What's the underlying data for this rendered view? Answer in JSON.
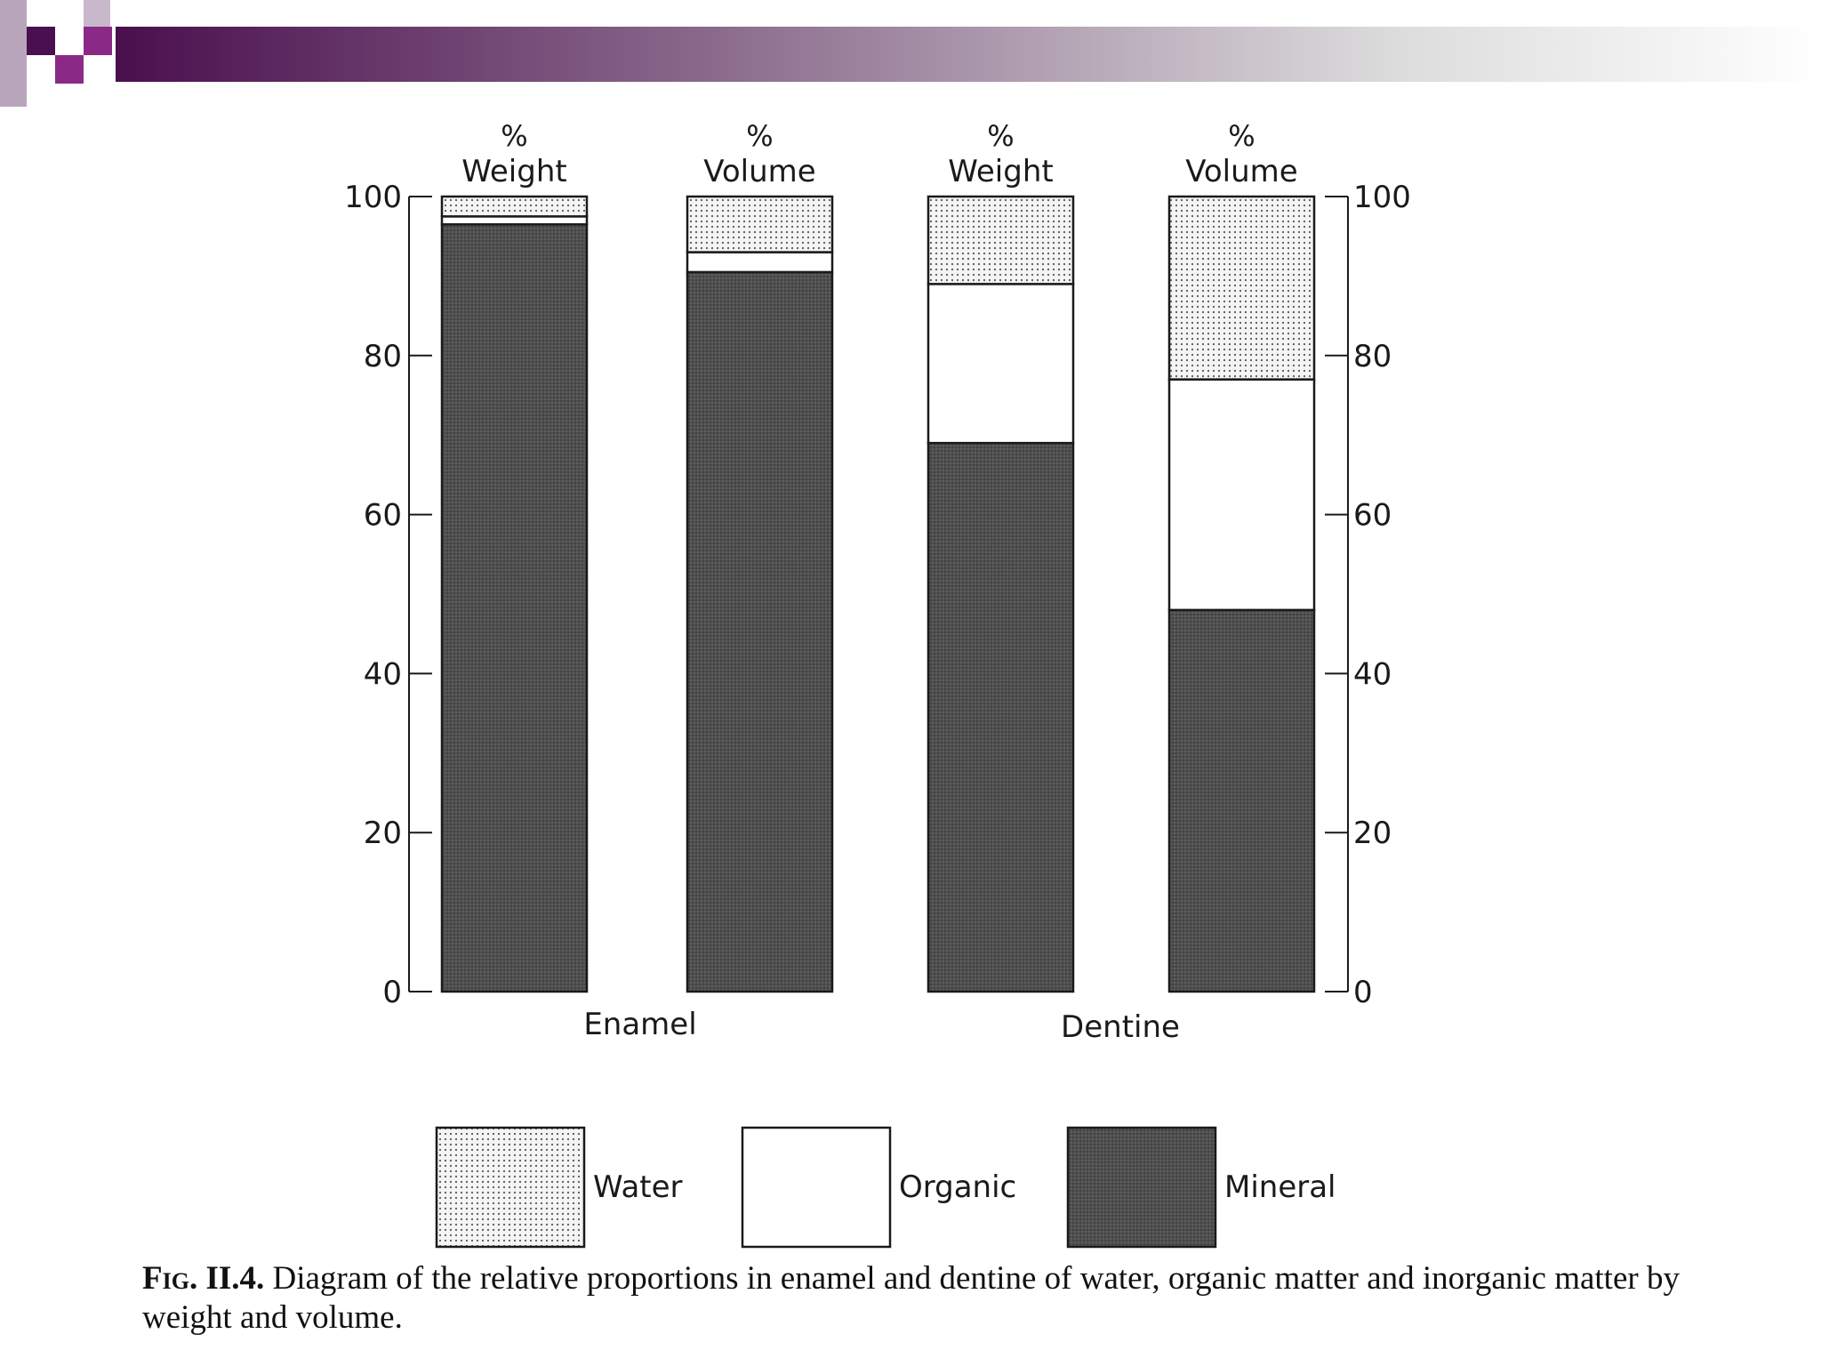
{
  "chart_data": {
    "type": "bar",
    "stacked": true,
    "ylim": [
      0,
      100
    ],
    "yticks": [
      "0",
      "20",
      "40",
      "60",
      "80",
      "100"
    ],
    "y_axis_left_ticks": [
      "0",
      "20",
      "40",
      "60",
      "80",
      "100"
    ],
    "y_axis_right_ticks": [
      "0",
      "20",
      "40",
      "60",
      "80",
      "100"
    ],
    "groups": [
      "Enamel",
      "Dentine"
    ],
    "bars": [
      {
        "group": "Enamel",
        "label_top": "%",
        "label": "Weight",
        "mineral": 96.5,
        "organic": 1,
        "water": 2.5
      },
      {
        "group": "Enamel",
        "label_top": "%",
        "label": "Volume",
        "mineral": 90.5,
        "organic": 2.5,
        "water": 7
      },
      {
        "group": "Dentine",
        "label_top": "%",
        "label": "Weight",
        "mineral": 69,
        "organic": 20,
        "water": 11
      },
      {
        "group": "Dentine",
        "label_top": "%",
        "label": "Volume",
        "mineral": 48,
        "organic": 29,
        "water": 23
      }
    ],
    "legend": [
      {
        "key": "water",
        "label": "Water"
      },
      {
        "key": "organic",
        "label": "Organic"
      },
      {
        "key": "mineral",
        "label": "Mineral"
      }
    ],
    "legend_position": "bottom",
    "colors": {
      "mineral": "#4e4e4e",
      "organic": "#ffffff",
      "water": "#e8e8e8",
      "outline": "#1a1a1a"
    }
  },
  "caption": {
    "fig": "Fig. II.4.",
    "text": "Diagram of the relative proportions in enamel and dentine of water, organic matter and inorganic matter by weight and volume."
  },
  "banner": {
    "colors": [
      "#4a0f4e",
      "#8a2a86"
    ]
  }
}
